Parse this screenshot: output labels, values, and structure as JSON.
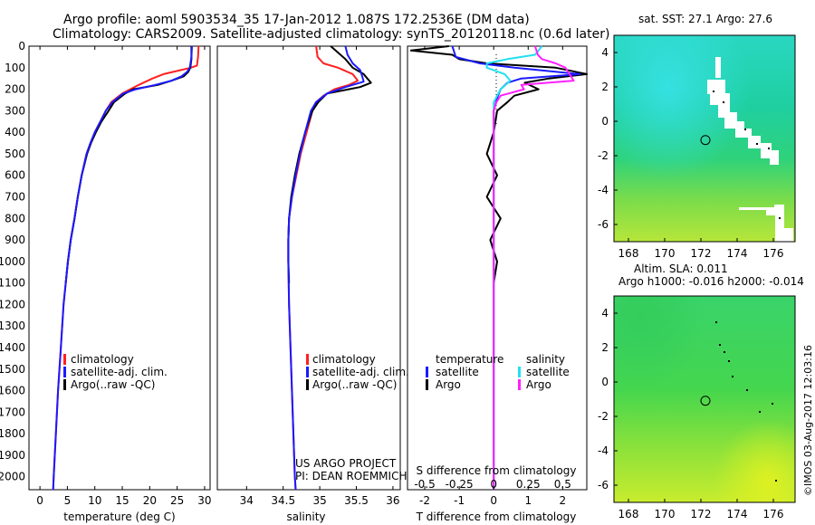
{
  "titles": {
    "line1": "Argo profile: aoml 5903534_35 17-Jan-2012 1.087S 172.2536E (DM data)",
    "line2": "Climatology: CARS2009. Satellite-adjusted climatology: synTS_20120118.nc (0.6d later)"
  },
  "depth_axis": {
    "ticks": [
      "0",
      "100",
      "200",
      "300",
      "400",
      "500",
      "600",
      "700",
      "800",
      "900",
      "1000",
      "1100",
      "1200",
      "1300",
      "1400",
      "1500",
      "1600",
      "1700",
      "1800",
      "1900",
      "2000"
    ]
  },
  "colors": {
    "climatology": "#ff2020",
    "satellite": "#1a1aff",
    "argo": "#000000",
    "salinity_satellite": "#22e0f0",
    "salinity_argo": "#ff20ff"
  },
  "chart_data": [
    {
      "type": "line",
      "title": "",
      "xlabel": "temperature (deg C)",
      "ylabel": "depth",
      "xlim": [
        -2,
        31
      ],
      "ylim": [
        2060,
        0
      ],
      "x_ticks": [
        "0",
        "5",
        "10",
        "15",
        "20",
        "25",
        "30"
      ],
      "x_tick_values": [
        0,
        5,
        10,
        15,
        20,
        25,
        30
      ],
      "legend": [
        "climatology",
        "satellite-adj. clim.",
        "Argo(..raw -QC)"
      ],
      "series": [
        {
          "name": "climatology",
          "depth": [
            0,
            50,
            90,
            100,
            115,
            130,
            150,
            180,
            220,
            260,
            300,
            350,
            400,
            450,
            500,
            600,
            700,
            800,
            900,
            1000,
            1200,
            1400,
            1600,
            1800,
            2000,
            2060
          ],
          "values": [
            28.9,
            28.8,
            28.6,
            27.5,
            25.0,
            22.5,
            20.5,
            18.0,
            15.0,
            13.0,
            12.0,
            11.0,
            10.0,
            9.2,
            8.5,
            7.6,
            6.9,
            6.3,
            5.6,
            5.1,
            4.3,
            3.8,
            3.3,
            2.9,
            2.5,
            2.4
          ]
        },
        {
          "name": "satellite",
          "depth": [
            0,
            50,
            100,
            120,
            140,
            160,
            180,
            200,
            220,
            260,
            300,
            350,
            400,
            450,
            500,
            600,
            700,
            800,
            900,
            1000,
            1200,
            1400,
            1600,
            1800,
            2000,
            2060
          ],
          "values": [
            27.7,
            27.6,
            27.3,
            26.8,
            25.8,
            24.0,
            21.0,
            17.5,
            15.2,
            13.2,
            12.0,
            11.0,
            10.0,
            9.2,
            8.5,
            7.6,
            6.9,
            6.3,
            5.6,
            5.1,
            4.3,
            3.8,
            3.3,
            2.9,
            2.5,
            2.4
          ]
        },
        {
          "name": "Argo",
          "depth": [
            0,
            60,
            100,
            120,
            140,
            160,
            180,
            200,
            220,
            240,
            260,
            300,
            350,
            400,
            450,
            500,
            600,
            700,
            800,
            900,
            1000,
            1100
          ],
          "values": [
            27.6,
            27.6,
            27.4,
            27.0,
            26.2,
            24.0,
            21.5,
            17.0,
            15.5,
            14.5,
            13.5,
            12.5,
            11.2,
            10.2,
            9.3,
            8.6,
            7.6,
            6.9,
            6.3,
            5.6,
            5.1,
            4.7
          ]
        }
      ]
    },
    {
      "type": "line",
      "title": "",
      "xlabel": "salinity",
      "ylabel": "depth",
      "xlim": [
        33.6,
        36.1
      ],
      "ylim": [
        2060,
        0
      ],
      "x_ticks": [
        "34",
        "34.5",
        "35",
        "35.5",
        "36"
      ],
      "x_tick_values": [
        34,
        34.5,
        35,
        35.5,
        36
      ],
      "legend": [
        "climatology",
        "satellite-adj. clim.",
        "Argo(..raw -QC)"
      ],
      "annotations": [
        "US ARGO PROJECT",
        "PI: DEAN ROEMMICH"
      ],
      "series": [
        {
          "name": "climatology",
          "depth": [
            0,
            50,
            80,
            100,
            130,
            160,
            180,
            200,
            230,
            260,
            300,
            400,
            500,
            600,
            700,
            800,
            900,
            1000,
            1200,
            1400,
            1600,
            1800,
            2000,
            2060
          ],
          "values": [
            34.95,
            34.97,
            35.05,
            35.25,
            35.45,
            35.52,
            35.4,
            35.2,
            35.05,
            34.95,
            34.9,
            34.82,
            34.74,
            34.68,
            34.62,
            34.58,
            34.57,
            34.57,
            34.58,
            34.6,
            34.62,
            34.64,
            34.66,
            34.67
          ]
        },
        {
          "name": "satellite",
          "depth": [
            0,
            40,
            80,
            110,
            140,
            165,
            190,
            220,
            260,
            300,
            400,
            500,
            600,
            700,
            800,
            900,
            1000,
            1200,
            1400,
            1600,
            1800,
            2000,
            2060
          ],
          "values": [
            35.35,
            35.38,
            35.45,
            35.55,
            35.58,
            35.6,
            35.35,
            35.1,
            34.95,
            34.88,
            34.8,
            34.73,
            34.67,
            34.62,
            34.58,
            34.57,
            34.57,
            34.58,
            34.6,
            34.62,
            34.64,
            34.66,
            34.67
          ]
        },
        {
          "name": "Argo",
          "depth": [
            0,
            30,
            60,
            100,
            130,
            150,
            170,
            190,
            220,
            260,
            300,
            400,
            500,
            600,
            700,
            800,
            900,
            1000,
            1100
          ],
          "values": [
            35.15,
            35.25,
            35.35,
            35.45,
            35.6,
            35.65,
            35.7,
            35.55,
            35.1,
            34.98,
            34.9,
            34.8,
            34.72,
            34.66,
            34.61,
            34.58,
            34.57,
            34.57,
            34.58
          ]
        }
      ]
    },
    {
      "type": "line",
      "title": "",
      "xlabel": "T difference from climatology",
      "x2label": "S difference from climatology",
      "ylabel": "depth",
      "xlim": [
        -2.5,
        2.7
      ],
      "ylim": [
        2060,
        0
      ],
      "x_ticks": [
        "-2",
        "-1",
        "0",
        "1",
        "2"
      ],
      "x_tick_values": [
        -2,
        -1,
        0,
        1,
        2
      ],
      "x2_ticks": [
        "-0.5",
        "-0.25",
        "0",
        "0.25",
        "0.5"
      ],
      "x2_tick_values": [
        -0.5,
        -0.25,
        0,
        0.25,
        0.5
      ],
      "legend_temperature": [
        "temperature",
        "satellite",
        "Argo"
      ],
      "legend_salinity": [
        "salinity",
        "satellite",
        "Argo"
      ],
      "series": [
        {
          "name": "T satellite",
          "depth": [
            0,
            50,
            80,
            100,
            130,
            150,
            170,
            200,
            240,
            300,
            400,
            600,
            800,
            1000,
            1400,
            1800,
            2000,
            2060
          ],
          "values": [
            -1.2,
            -1.1,
            -0.4,
            0.6,
            2.5,
            0.8,
            0.4,
            0.2,
            0.1,
            0.0,
            0.0,
            0.0,
            0.0,
            0.0,
            0.0,
            0.0,
            0.0,
            0.0
          ]
        },
        {
          "name": "T Argo",
          "depth": [
            0,
            20,
            40,
            60,
            80,
            100,
            130,
            150,
            170,
            200,
            230,
            260,
            300,
            400,
            500,
            600,
            700,
            800,
            900,
            1000,
            1100
          ],
          "values": [
            -1.3,
            -2.4,
            -1.2,
            -1.0,
            -0.2,
            1.8,
            2.7,
            1.6,
            0.9,
            1.3,
            0.6,
            0.4,
            0.1,
            0.0,
            -0.2,
            0.1,
            -0.2,
            0.2,
            -0.1,
            0.1,
            0.0
          ]
        },
        {
          "name": "S satellite",
          "depth": [
            0,
            40,
            60,
            80,
            100,
            130,
            160,
            200,
            260,
            300,
            400,
            600,
            800,
            1000,
            1400,
            1800,
            2000,
            2060
          ],
          "values": [
            0.35,
            0.3,
            0.1,
            -0.05,
            -0.05,
            0.08,
            0.12,
            0.05,
            0.0,
            0.0,
            0.0,
            0.0,
            0.0,
            0.0,
            0.0,
            0.0,
            0.0,
            0.0
          ]
        },
        {
          "name": "S Argo",
          "depth": [
            0,
            40,
            60,
            80,
            100,
            130,
            160,
            180,
            200,
            230,
            260,
            300,
            400,
            600,
            800,
            1000,
            1400,
            1800,
            2000,
            2060
          ],
          "values": [
            0.3,
            0.32,
            0.35,
            0.45,
            0.52,
            0.55,
            0.58,
            0.2,
            0.22,
            0.05,
            0.02,
            0.0,
            0.0,
            0.0,
            0.0,
            0.0,
            0.0,
            0.0,
            0.0,
            0.0
          ]
        }
      ]
    },
    {
      "type": "heatmap",
      "title": "sat. SST: 27.1  Argo: 27.6",
      "xlim": [
        167.2,
        177.2
      ],
      "ylim": [
        -7,
        5
      ],
      "x_ticks": [
        "168",
        "170",
        "172",
        "174",
        "176"
      ],
      "x_tick_values": [
        168,
        170,
        172,
        174,
        176
      ],
      "y_ticks": [
        "4",
        "2",
        "0",
        "-2",
        "-4",
        "-6"
      ],
      "y_tick_values": [
        4,
        2,
        0,
        -2,
        -4,
        -6
      ],
      "marker": {
        "lon": 172.25,
        "lat": -1.09
      }
    },
    {
      "type": "heatmap",
      "title": "Altim. SLA: 0.011",
      "subtitle": "Argo h1000: -0.016 h2000: -0.014",
      "xlim": [
        167.2,
        177.2
      ],
      "ylim": [
        -7,
        5
      ],
      "x_ticks": [
        "168",
        "170",
        "172",
        "174",
        "176"
      ],
      "x_tick_values": [
        168,
        170,
        172,
        174,
        176
      ],
      "y_ticks": [
        "4",
        "2",
        "0",
        "-2",
        "-4",
        "-6"
      ],
      "y_tick_values": [
        4,
        2,
        0,
        -2,
        -4,
        -6
      ],
      "marker": {
        "lon": 172.25,
        "lat": -1.09
      }
    }
  ],
  "watermark": "©IMOS 03-Aug-2017 12:03:16"
}
